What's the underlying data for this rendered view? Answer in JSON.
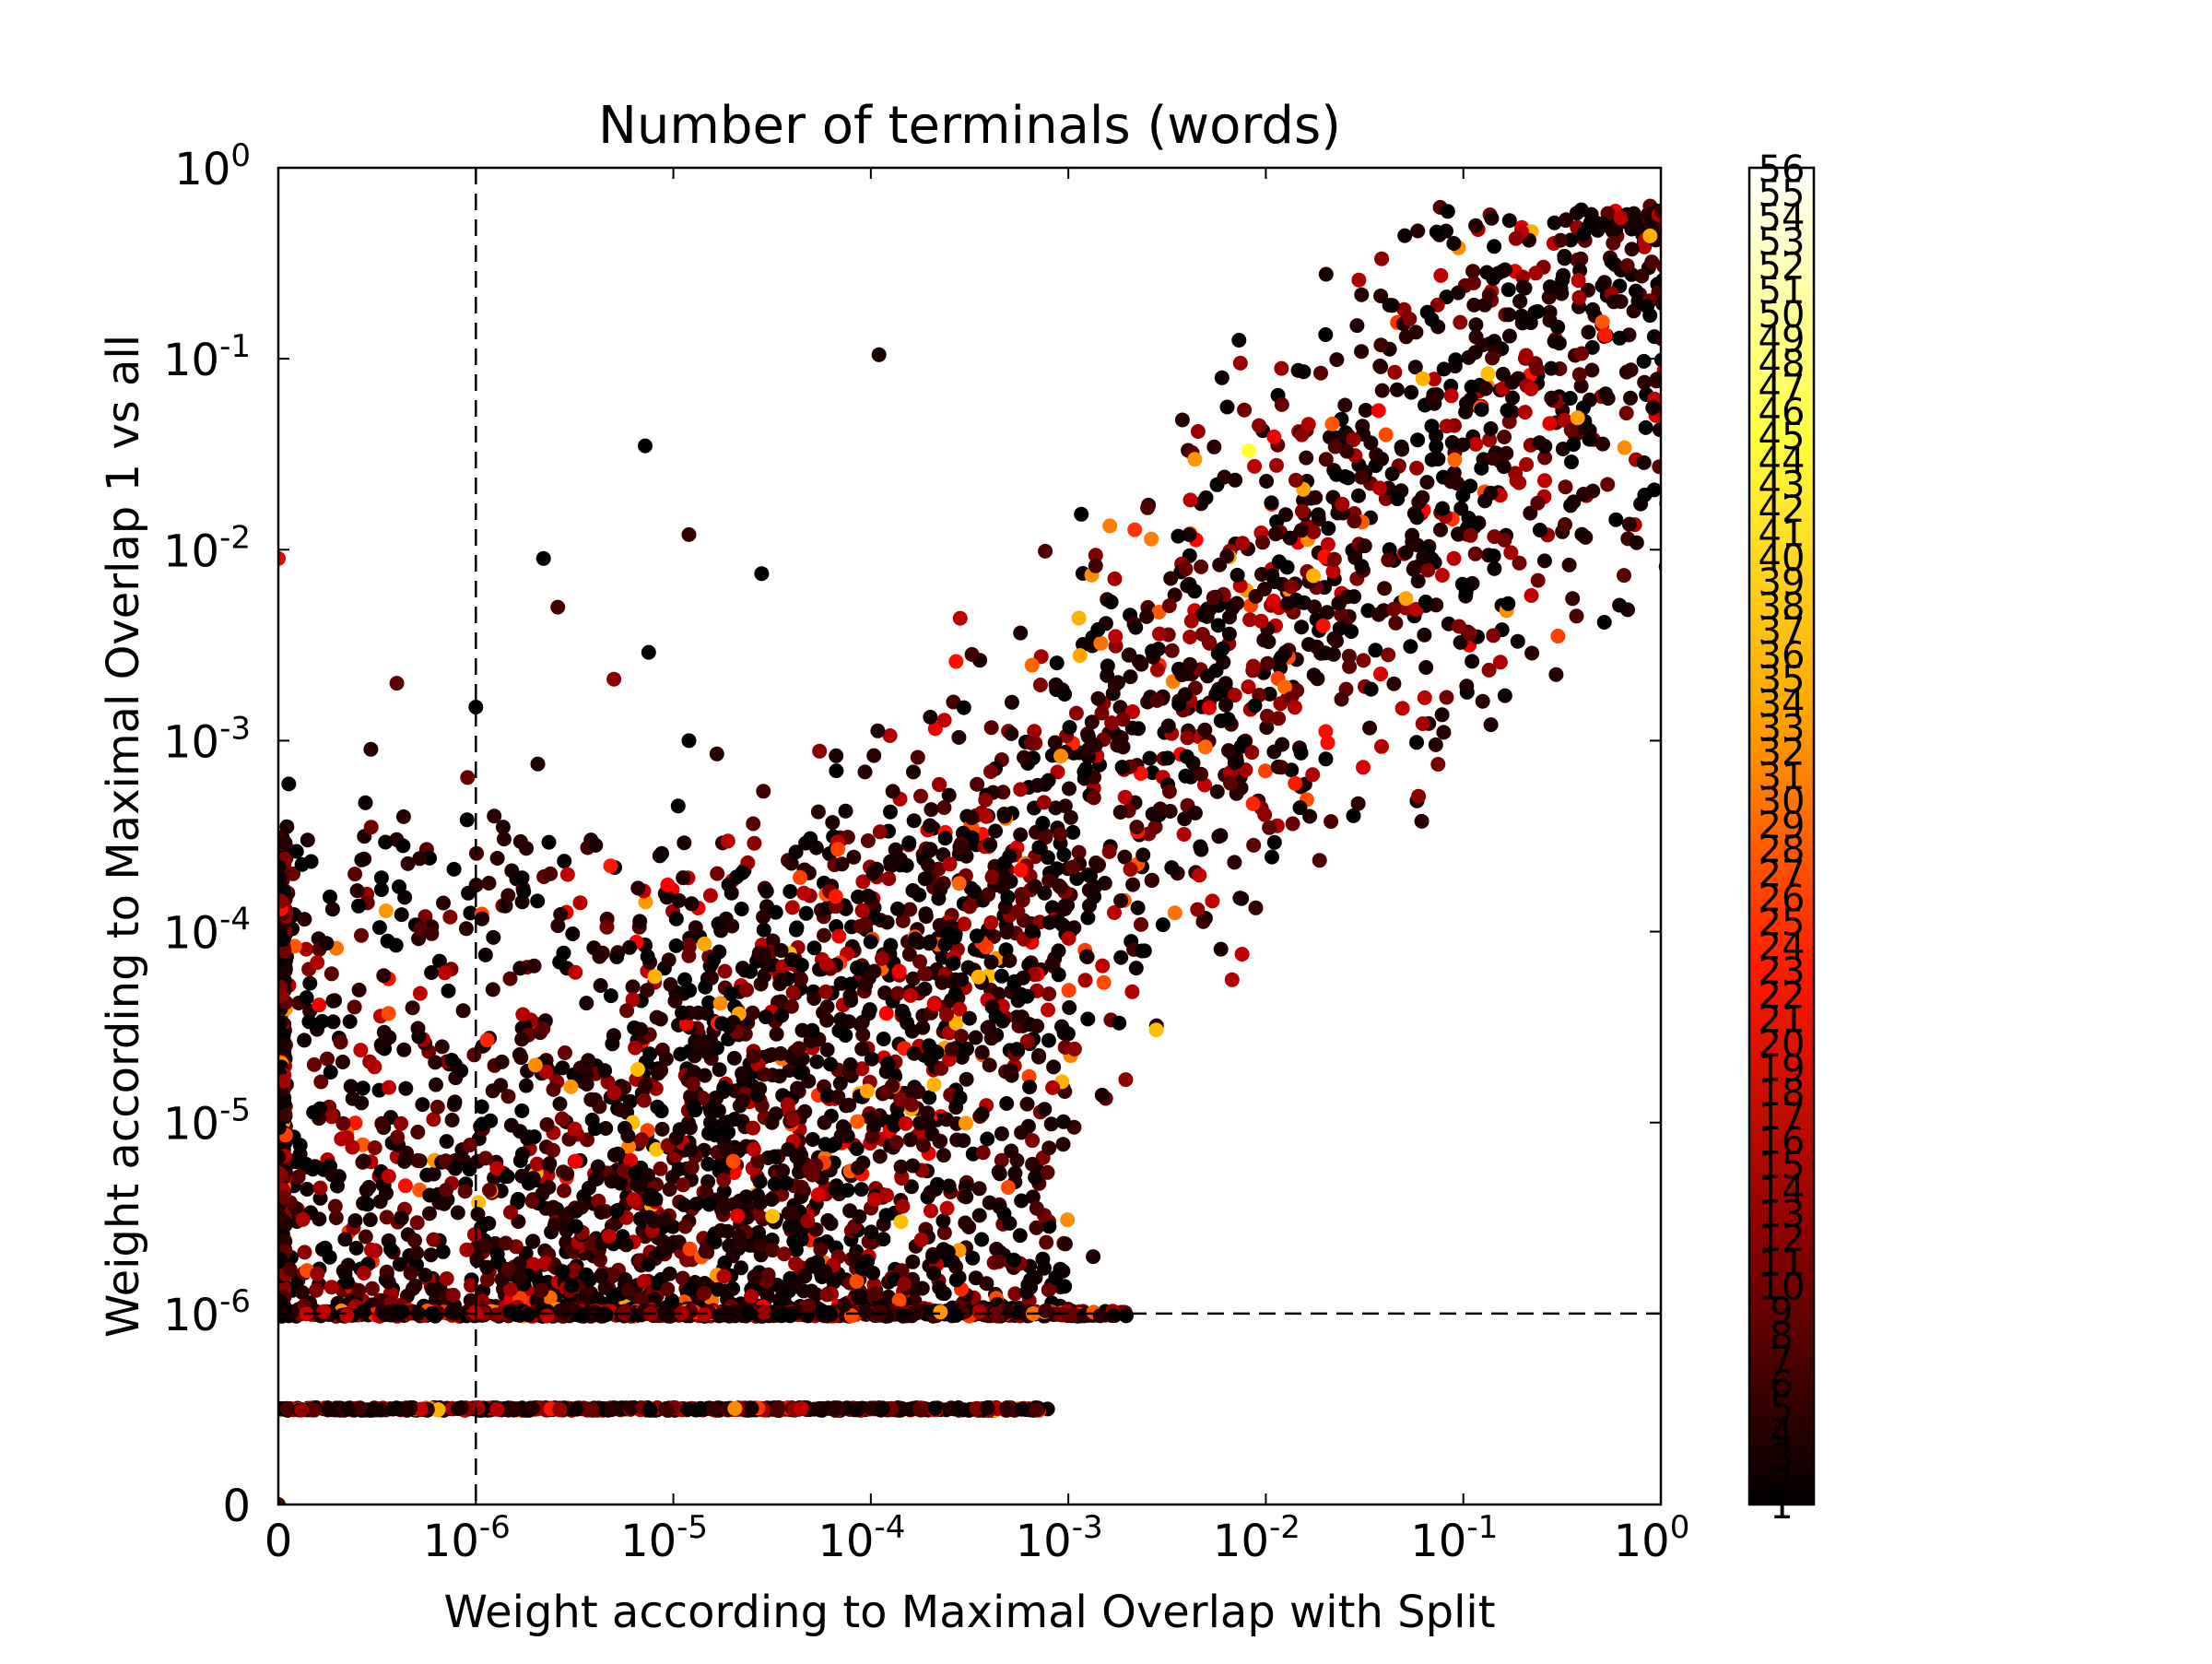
{
  "chart_data": {
    "type": "scatter",
    "title": "Number of terminals (words)",
    "xlabel": "Weight according to Maximal Overlap with Split",
    "ylabel": "Weight according to Maximal Overlap 1 vs all",
    "xscale": "symlog",
    "yscale": "symlog",
    "xlim": [
      0,
      1
    ],
    "ylim": [
      0,
      1
    ],
    "x_ticks": [
      {
        "value": 0,
        "base": "0",
        "exp": ""
      },
      {
        "value": 1e-06,
        "base": "10",
        "exp": "-6"
      },
      {
        "value": 1e-05,
        "base": "10",
        "exp": "-5"
      },
      {
        "value": 0.0001,
        "base": "10",
        "exp": "-4"
      },
      {
        "value": 0.001,
        "base": "10",
        "exp": "-3"
      },
      {
        "value": 0.01,
        "base": "10",
        "exp": "-2"
      },
      {
        "value": 0.1,
        "base": "10",
        "exp": "-1"
      },
      {
        "value": 1,
        "base": "10",
        "exp": "0"
      }
    ],
    "y_ticks": [
      {
        "value": 0,
        "base": "0",
        "exp": ""
      },
      {
        "value": 1e-06,
        "base": "10",
        "exp": "-6"
      },
      {
        "value": 1e-05,
        "base": "10",
        "exp": "-5"
      },
      {
        "value": 0.0001,
        "base": "10",
        "exp": "-4"
      },
      {
        "value": 0.001,
        "base": "10",
        "exp": "-3"
      },
      {
        "value": 0.01,
        "base": "10",
        "exp": "-2"
      },
      {
        "value": 0.1,
        "base": "10",
        "exp": "-1"
      },
      {
        "value": 1,
        "base": "10",
        "exp": "0"
      }
    ],
    "reference_lines": [
      {
        "axis": "x",
        "value": 1e-06,
        "style": "dashed"
      },
      {
        "axis": "y",
        "value": 1e-06,
        "style": "dashed"
      }
    ],
    "grid": false,
    "legend": "none",
    "colorbar": {
      "label": "Number of terminals (words)",
      "colormap": "hot",
      "min": 1,
      "max": 56,
      "colors": [
        "#000000",
        "#8c0000",
        "#ff1a00",
        "#ffaa00",
        "#ffff40",
        "#ffffff"
      ],
      "tick_labels": [
        "1",
        "2",
        "3",
        "4",
        "5",
        "6",
        "7",
        "8",
        "9",
        "10",
        "11",
        "12",
        "13",
        "14",
        "15",
        "16",
        "17",
        "18",
        "19",
        "20",
        "21",
        "22",
        "23",
        "24",
        "25",
        "26",
        "27",
        "28",
        "29",
        "30",
        "31",
        "32",
        "33",
        "34",
        "35",
        "36",
        "37",
        "38",
        "39",
        "40",
        "41",
        "42",
        "43",
        "44",
        "45",
        "46",
        "47",
        "48",
        "49",
        "50",
        "51",
        "52",
        "53",
        "54",
        "55",
        "56"
      ]
    },
    "notable_points": [
      {
        "x": 0.43,
        "y": 0.49,
        "c": 1
      },
      {
        "x": 0.15,
        "y": 0.28,
        "c": 2
      },
      {
        "x": 0.00011,
        "y": 0.105,
        "c": 3
      },
      {
        "x": 7.2e-06,
        "y": 0.035,
        "c": 1
      },
      {
        "x": 0.0082,
        "y": 0.033,
        "c": 44
      },
      {
        "x": 0.011,
        "y": 0.039,
        "c": 20
      },
      {
        "x": 1.2e-05,
        "y": 0.012,
        "c": 5
      },
      {
        "x": 2.2e-06,
        "y": 0.009,
        "c": 1
      },
      {
        "x": 2.8e-05,
        "y": 0.0075,
        "c": 1
      },
      {
        "x": 2.6e-06,
        "y": 0.005,
        "c": 6
      },
      {
        "x": 7.5e-06,
        "y": 0.0029,
        "c": 1
      },
      {
        "x": 1e-06,
        "y": 0.0015,
        "c": 1
      },
      {
        "x": 6e-07,
        "y": 0.002,
        "c": 8
      },
      {
        "x": 1.2e-05,
        "y": 0.001,
        "c": 1
      },
      {
        "x": 0.00043,
        "y": 3.6e-05,
        "c": 1
      },
      {
        "x": 6.8e-05,
        "y": 0.00027,
        "c": 26
      },
      {
        "x": 0.00027,
        "y": 0.0026,
        "c": 22
      },
      {
        "x": 6.6e-06,
        "y": 1.9e-05,
        "c": 36
      },
      {
        "x": 2e-06,
        "y": 2e-05,
        "c": 32
      },
      {
        "x": 5e-06,
        "y": 0.0021,
        "c": 12
      },
      {
        "x": 0,
        "y": 0.009,
        "c": 20
      },
      {
        "x": 0,
        "y": 0,
        "c": 6
      }
    ],
    "clusters": [
      {
        "description": "main diagonal band",
        "x_range": [
          1e-06,
          0.5
        ],
        "y_range": [
          1e-06,
          0.5
        ]
      },
      {
        "description": "floor row at y = 1e-6",
        "x_range": [
          0,
          0.0001
        ],
        "y": 1e-06
      },
      {
        "description": "row at y = 5e-7",
        "x_range": [
          0,
          8e-05
        ],
        "y": 5e-07
      },
      {
        "description": "column at x = 0",
        "x": 0,
        "y_range": [
          1e-06,
          0.0003
        ]
      }
    ]
  }
}
